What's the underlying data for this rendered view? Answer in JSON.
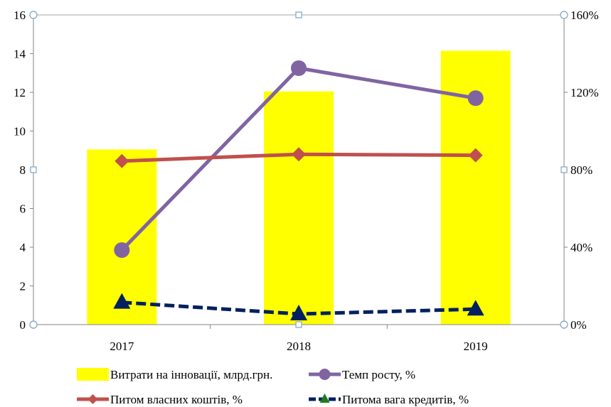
{
  "chart_data": {
    "type": "bar",
    "categories": [
      "2017",
      "2018",
      "2019"
    ],
    "y_left": {
      "min": 0,
      "max": 16,
      "ticks": [
        0,
        2,
        4,
        6,
        8,
        10,
        12,
        14,
        16
      ]
    },
    "y_right": {
      "min": 0,
      "max": 160,
      "ticks": [
        "0%",
        "40%",
        "80%",
        "120%",
        "160%"
      ],
      "tick_values": [
        0,
        40,
        80,
        120,
        160
      ]
    },
    "grid": false,
    "legend_position": "bottom",
    "series": [
      {
        "name": "Витрати на інновації, млрд.грн.",
        "kind": "bar",
        "axis": "left",
        "color": "#FFFF00",
        "values": [
          9.05,
          12.05,
          14.15
        ]
      },
      {
        "name": "Темп росту, %",
        "kind": "line",
        "axis": "right",
        "color": "#8064A2",
        "marker": "circle",
        "values": [
          38.5,
          132.5,
          117
        ]
      },
      {
        "name": "Питом власних коштів, %",
        "kind": "line",
        "axis": "right",
        "color": "#C0504D",
        "marker": "diamond",
        "values": [
          84.5,
          88,
          87.5
        ]
      },
      {
        "name": "Питома вага кредитів, %",
        "kind": "line",
        "axis": "right",
        "color": "#002060",
        "marker": "triangle",
        "dashed": true,
        "values": [
          11.5,
          5.5,
          8
        ]
      }
    ]
  }
}
